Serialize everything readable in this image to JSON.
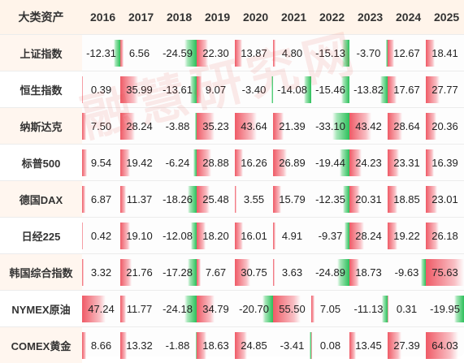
{
  "chart_data": {
    "type": "table",
    "corner_label": "大类资产",
    "columns": [
      "2016",
      "2017",
      "2018",
      "2019",
      "2020",
      "2021",
      "2022",
      "2023",
      "2024",
      "2025"
    ],
    "rows": [
      {
        "asset": "上证指数",
        "values": [
          -12.31,
          6.56,
          -24.59,
          22.3,
          13.87,
          4.8,
          -15.13,
          -3.7,
          12.67,
          18.41
        ],
        "labels": [
          "-12.31",
          "6.56",
          "-24.59",
          "22.30",
          "13.87",
          "4.80",
          "-15.13",
          "-3.70",
          "12.67",
          "18.41"
        ]
      },
      {
        "asset": "恒生指数",
        "values": [
          0.39,
          35.99,
          -13.61,
          9.07,
          -3.4,
          -14.08,
          -15.46,
          -13.82,
          17.67,
          27.77
        ],
        "labels": [
          "0.39",
          "35.99",
          "-13.61",
          "9.07",
          "-3.40",
          "-14.08",
          "-15.46",
          "-13.82",
          "17.67",
          "27.77"
        ]
      },
      {
        "asset": "纳斯达克",
        "values": [
          7.5,
          28.24,
          -3.88,
          35.23,
          43.64,
          21.39,
          -33.1,
          43.42,
          28.64,
          20.36
        ],
        "labels": [
          "7.50",
          "28.24",
          "-3.88",
          "35.23",
          "43.64",
          "21.39",
          "-33.10",
          "43.42",
          "28.64",
          "20.36"
        ]
      },
      {
        "asset": "标普500",
        "values": [
          9.54,
          19.42,
          -6.24,
          28.88,
          16.26,
          26.89,
          -19.44,
          24.23,
          23.31,
          16.39
        ],
        "labels": [
          "9.54",
          "19.42",
          "-6.24",
          "28.88",
          "16.26",
          "26.89",
          "-19.44",
          "24.23",
          "23.31",
          "16.39"
        ]
      },
      {
        "asset": "德国DAX",
        "values": [
          6.87,
          11.37,
          -18.26,
          25.48,
          3.55,
          15.79,
          -12.35,
          20.31,
          18.85,
          23.01
        ],
        "labels": [
          "6.87",
          "11.37",
          "-18.26",
          "25.48",
          "3.55",
          "15.79",
          "-12.35",
          "20.31",
          "18.85",
          "23.01"
        ]
      },
      {
        "asset": "日经225",
        "values": [
          0.42,
          19.1,
          -12.08,
          18.2,
          16.01,
          4.91,
          -9.37,
          28.24,
          19.22,
          26.18
        ],
        "labels": [
          "0.42",
          "19.10",
          "-12.08",
          "18.20",
          "16.01",
          "4.91",
          "-9.37",
          "28.24",
          "19.22",
          "26.18"
        ]
      },
      {
        "asset": "韩国综合指数",
        "values": [
          3.32,
          21.76,
          -17.28,
          7.67,
          30.75,
          3.63,
          -24.89,
          18.73,
          -9.63,
          75.63
        ],
        "labels": [
          "3.32",
          "21.76",
          "-17.28",
          "7.67",
          "30.75",
          "3.63",
          "-24.89",
          "18.73",
          "-9.63",
          "75.63"
        ]
      },
      {
        "asset": "NYMEX原油",
        "values": [
          47.24,
          11.77,
          -24.18,
          34.79,
          -20.7,
          55.5,
          7.05,
          -11.13,
          0.31,
          -19.95
        ],
        "labels": [
          "47.24",
          "11.77",
          "-24.18",
          "34.79",
          "-20.70",
          "55.50",
          "7.05",
          "-11.13",
          "0.31",
          "-19.95"
        ]
      },
      {
        "asset": "COMEX黄金",
        "values": [
          8.66,
          13.32,
          -1.88,
          18.63,
          24.85,
          -3.41,
          0.08,
          13.45,
          27.39,
          64.03
        ],
        "labels": [
          "8.66",
          "13.32",
          "-1.88",
          "18.63",
          "24.85",
          "-3.41",
          "0.08",
          "13.45",
          "27.39",
          "64.03"
        ]
      }
    ],
    "colors": {
      "positive": "#ef5a66",
      "negative": "#2bc05a",
      "header_bg": "#fff4ea",
      "stripe_bg": "#fff6ef"
    }
  },
  "watermark": "融慧研究网"
}
